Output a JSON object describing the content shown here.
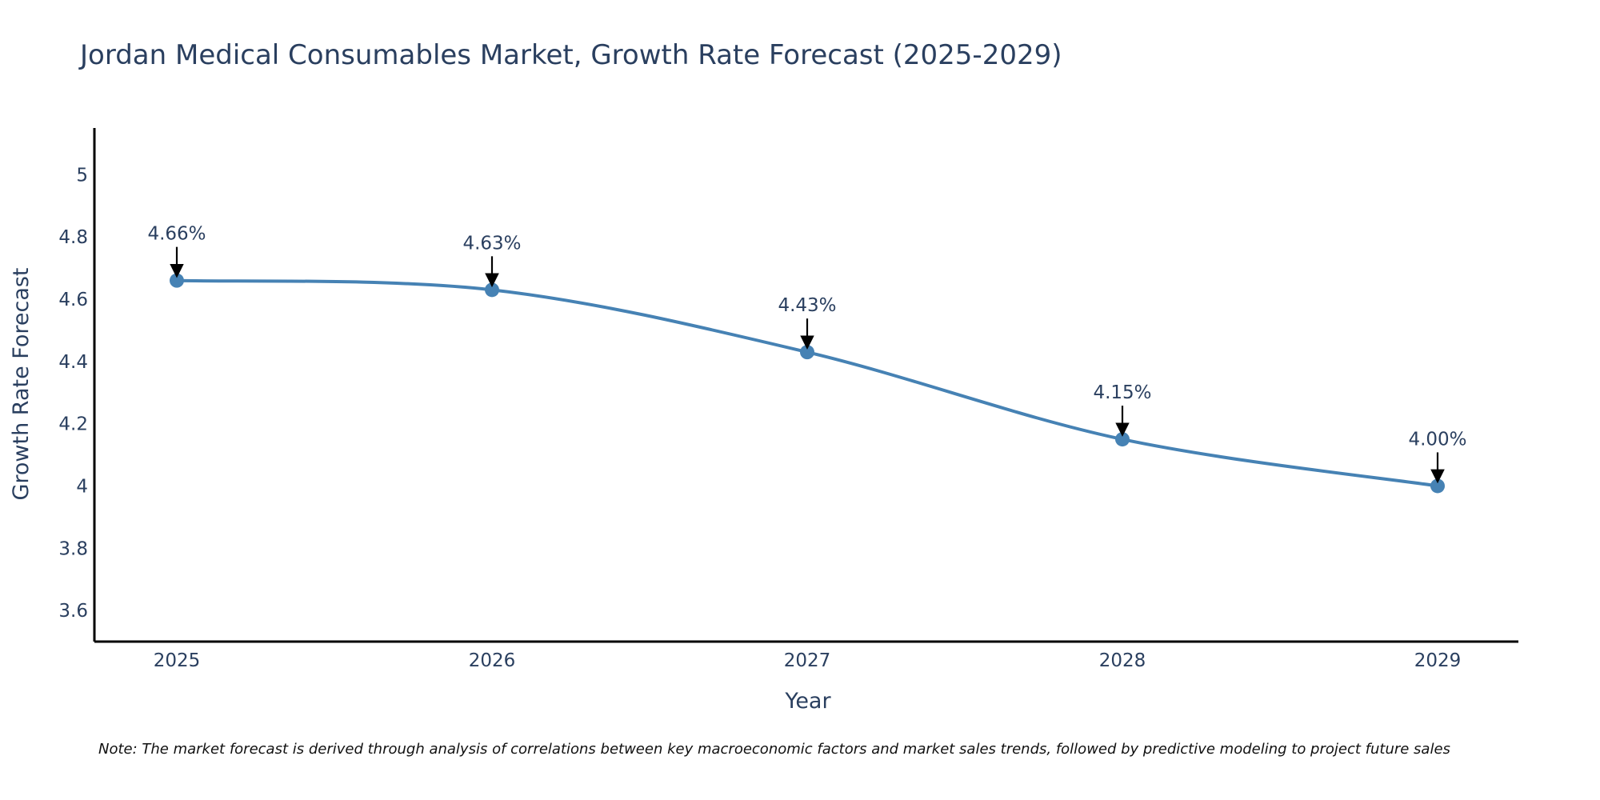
{
  "chart_data": {
    "type": "line",
    "title": "Jordan Medical Consumables Market, Growth Rate Forecast (2025-2029)",
    "xlabel": "Year",
    "ylabel": "Growth Rate Forecast",
    "categories": [
      "2025",
      "2026",
      "2027",
      "2028",
      "2029"
    ],
    "series": [
      {
        "name": "Growth Rate Forecast",
        "values": [
          4.66,
          4.63,
          4.43,
          4.15,
          4.0
        ],
        "color": "#4682b4"
      }
    ],
    "annotations": [
      "4.66%",
      "4.63%",
      "4.43%",
      "4.15%",
      "4.00%"
    ],
    "ylim": [
      3.5,
      5.15
    ],
    "yticks": [
      3.6,
      3.8,
      4,
      4.2,
      4.4,
      4.6,
      4.8,
      5
    ],
    "ytick_labels": [
      "3.6",
      "3.8",
      "4",
      "4.2",
      "4.4",
      "4.6",
      "4.8",
      "5"
    ],
    "grid": false,
    "line_shape": "spline",
    "note": "Note: The market forecast is derived through analysis of correlations between key macroeconomic factors and market sales trends, followed by predictive modeling to project future sales"
  }
}
